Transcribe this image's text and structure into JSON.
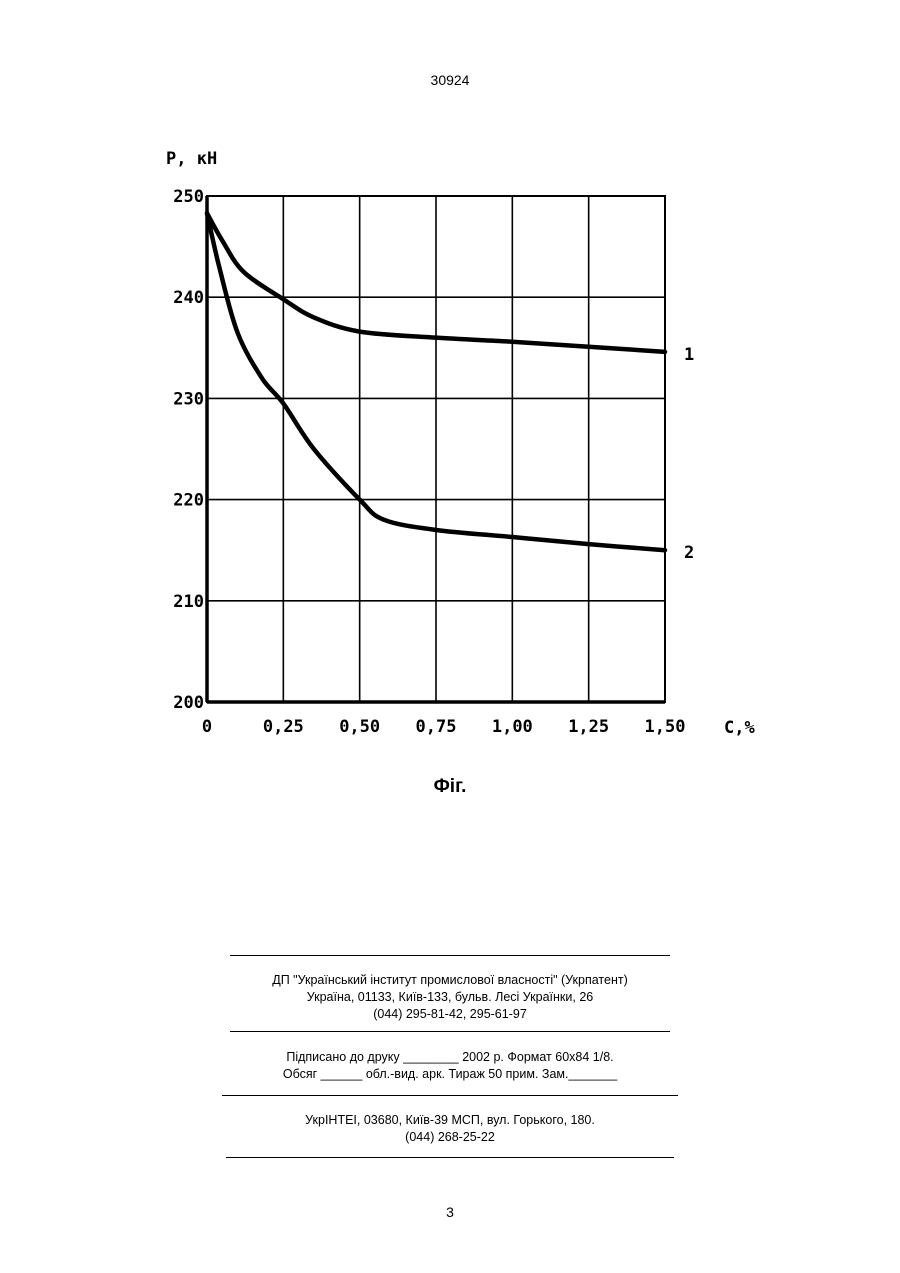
{
  "page": {
    "doc_number": "30924",
    "figure_caption": "Фіг.",
    "page_number": "3"
  },
  "imprint": {
    "publisher_line1": "ДП \"Український інститут промислової власності\" (Укрпатент)",
    "publisher_line2": "Україна, 01133, Київ-133, бульв. Лесі Українки, 26",
    "publisher_line3": "(044) 295-81-42, 295-61-97",
    "print_line1": "Підписано до друку ________ 2002 р.    Формат 60x84 1/8.",
    "print_line2": "Обсяг ______ обл.-вид. арк.   Тираж 50 прим.    Зам._______",
    "printer_line1": "УкрІНТЕІ, 03680, Київ-39 МСП, вул. Горького, 180.",
    "printer_line2": "(044) 268-25-22"
  },
  "chart_data": {
    "type": "line",
    "title": "",
    "xlabel": "C,%",
    "ylabel": "P, кН",
    "xlim": [
      0,
      1.5
    ],
    "ylim": [
      200,
      250
    ],
    "grid": true,
    "x_ticks": [
      0,
      0.25,
      0.5,
      0.75,
      1.0,
      1.25,
      1.5
    ],
    "x_tick_labels": [
      "0",
      "0,25",
      "0,50",
      "0,75",
      "1,00",
      "1,25",
      "1,50"
    ],
    "y_ticks": [
      200,
      210,
      220,
      230,
      240,
      250
    ],
    "y_tick_labels": [
      "200",
      "210",
      "220",
      "230",
      "240",
      "250"
    ],
    "series": [
      {
        "name": "1",
        "x": [
          0,
          0.05,
          0.12,
          0.25,
          0.35,
          0.5,
          0.75,
          1.0,
          1.25,
          1.5
        ],
        "y": [
          248.3,
          245.6,
          242.5,
          239.8,
          238.0,
          236.6,
          236.0,
          235.6,
          235.1,
          234.6
        ]
      },
      {
        "name": "2",
        "x": [
          0,
          0.04,
          0.1,
          0.18,
          0.25,
          0.35,
          0.5,
          0.58,
          0.75,
          1.0,
          1.25,
          1.5
        ],
        "y": [
          248.3,
          243.0,
          236.5,
          232.0,
          229.5,
          225.0,
          220.0,
          218.0,
          217.0,
          216.3,
          215.6,
          215.0
        ]
      }
    ]
  }
}
